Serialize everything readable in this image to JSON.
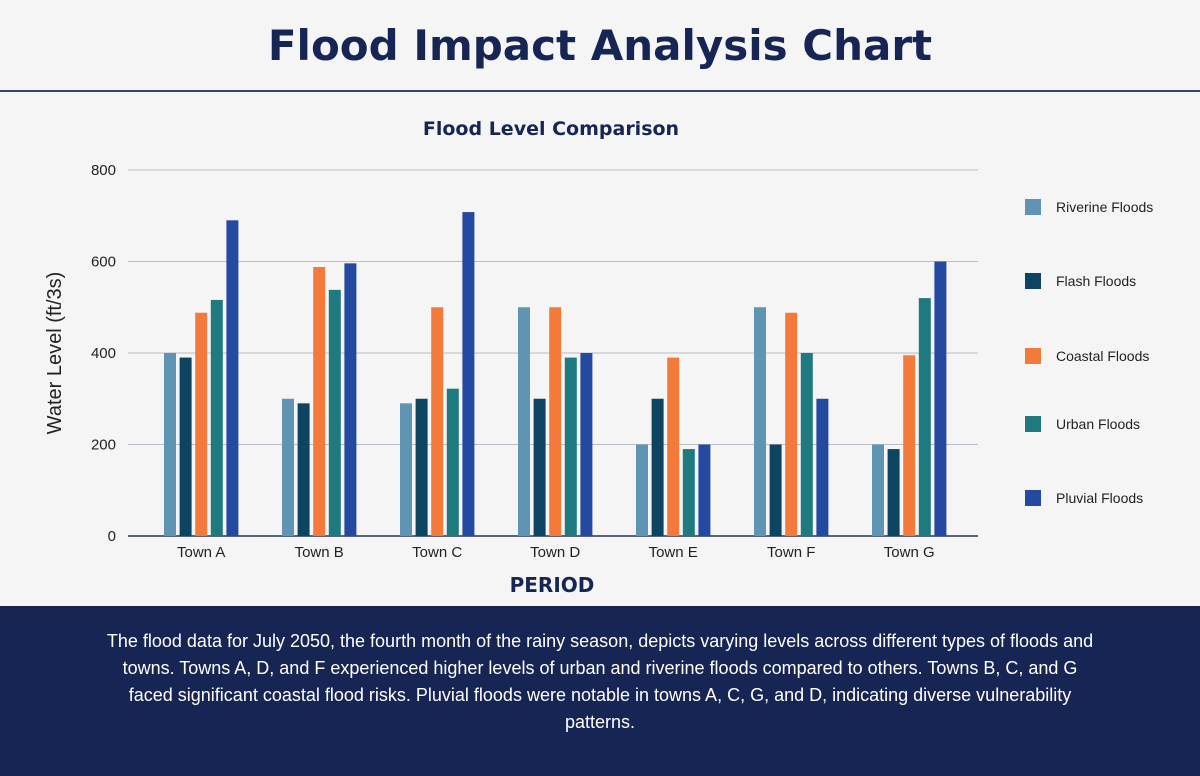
{
  "page_title": "Flood Impact Analysis Chart",
  "description": "The flood data for July 2050, the fourth month of the rainy season, depicts varying levels across different types of floods and towns. Towns A, D, and F experienced higher levels of urban and riverine floods compared to others. Towns B, C, and G faced significant coastal flood risks. Pluvial floods were notable in towns A, C, G, and D, indicating diverse vulnerability patterns.",
  "colors": {
    "title": "#172554",
    "footer_bg": "#172554",
    "grid": "#b8bcc8"
  },
  "chart_data": {
    "type": "bar",
    "title": "Flood Level Comparison",
    "xlabel": "PERIOD",
    "ylabel": "Water Level (ft/3s)",
    "ylim": [
      0,
      800
    ],
    "yticks": [
      0,
      200,
      400,
      600,
      800
    ],
    "grid": true,
    "legend_position": "right",
    "categories": [
      "Town A",
      "Town B",
      "Town C",
      "Town D",
      "Town E",
      "Town F",
      "Town G"
    ],
    "series": [
      {
        "name": "Riverine Floods",
        "color": "#6094b3",
        "values": [
          400,
          300,
          290,
          500,
          200,
          500,
          200
        ]
      },
      {
        "name": "Flash Floods",
        "color": "#0d4561",
        "values": [
          390,
          290,
          300,
          300,
          300,
          200,
          190
        ]
      },
      {
        "name": "Coastal Floods",
        "color": "#f47a3c",
        "values": [
          488,
          588,
          500,
          500,
          390,
          488,
          395
        ]
      },
      {
        "name": "Urban Floods",
        "color": "#1f7a80",
        "values": [
          516,
          538,
          322,
          390,
          190,
          400,
          520
        ]
      },
      {
        "name": "Pluvial Floods",
        "color": "#2449a0",
        "values": [
          690,
          596,
          708,
          400,
          200,
          300,
          600
        ]
      }
    ]
  }
}
